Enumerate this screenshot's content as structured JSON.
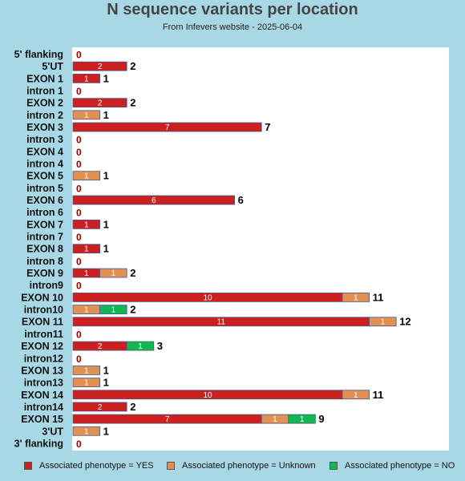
{
  "chart_data": {
    "type": "bar",
    "orientation": "horizontal",
    "stacked": true,
    "title": "N sequence variants per location",
    "subtitle": "From Infevers website - 2025-06-04",
    "categories": [
      "5' flanking",
      "5'UT",
      "EXON 1",
      "intron 1",
      "EXON 2",
      "intron 2",
      "EXON 3",
      "intron 3",
      "EXON 4",
      "intron 4",
      "EXON 5",
      "intron 5",
      "EXON 6",
      "intron 6",
      "EXON 7",
      "intron 7",
      "EXON 8",
      "intron 8",
      "EXON 9",
      "intron9",
      "EXON 10",
      "intron10",
      "EXON 11",
      "intron11",
      "EXON 12",
      "intron12",
      "EXON 13",
      "intron13",
      "EXON 14",
      "intron14",
      "EXON 15",
      "3'UT",
      "3' flanking"
    ],
    "series": [
      {
        "name": "Associated phenotype = YES",
        "color": "#cc2020",
        "values": [
          0,
          2,
          1,
          0,
          2,
          0,
          7,
          0,
          0,
          0,
          0,
          0,
          6,
          0,
          1,
          0,
          1,
          0,
          1,
          0,
          10,
          0,
          11,
          0,
          2,
          0,
          0,
          0,
          10,
          2,
          7,
          0,
          0
        ]
      },
      {
        "name": "Associated phenotype = Unknown",
        "color": "#e09050",
        "values": [
          0,
          0,
          0,
          0,
          0,
          1,
          0,
          0,
          0,
          0,
          1,
          0,
          0,
          0,
          0,
          0,
          0,
          0,
          1,
          0,
          1,
          1,
          1,
          0,
          0,
          0,
          1,
          1,
          1,
          0,
          1,
          1,
          0
        ]
      },
      {
        "name": "Associated phenotype = NO",
        "color": "#10b850",
        "values": [
          0,
          0,
          0,
          0,
          0,
          0,
          0,
          0,
          0,
          0,
          0,
          0,
          0,
          0,
          0,
          0,
          0,
          0,
          0,
          0,
          0,
          1,
          0,
          0,
          1,
          0,
          0,
          0,
          0,
          0,
          1,
          0,
          0
        ]
      }
    ],
    "totals": [
      0,
      2,
      1,
      0,
      2,
      1,
      7,
      0,
      0,
      0,
      1,
      0,
      6,
      0,
      1,
      0,
      1,
      0,
      2,
      0,
      11,
      2,
      12,
      0,
      3,
      0,
      1,
      1,
      11,
      2,
      9,
      1,
      0
    ],
    "legend_position": "bottom",
    "grid": false
  }
}
